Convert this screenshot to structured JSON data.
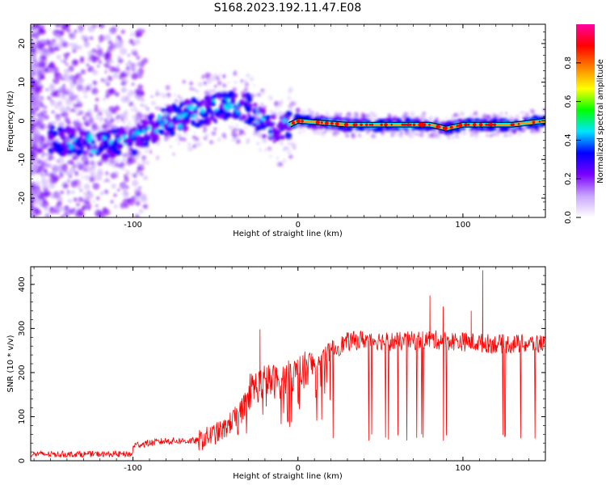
{
  "figure": {
    "title": "S168.2023.192.11.47.E08"
  },
  "chart_data": [
    {
      "type": "heatmap",
      "xlabel": "Height of straight line (km)",
      "ylabel": "Frequency (Hz)",
      "xlim": [
        -162,
        150
      ],
      "ylim": [
        -25,
        25
      ],
      "x_ticks": [
        -100,
        0,
        100
      ],
      "y_ticks": [
        -20,
        -10,
        0,
        10,
        20
      ],
      "colorbar": {
        "label": "Normalized spectral amplitude",
        "range": [
          0,
          1
        ],
        "ticks": [
          "0.0",
          "0.2",
          "0.4",
          "0.6",
          "0.8"
        ],
        "colors": [
          "#ffffff",
          "#c9a6ff",
          "#7a00ff",
          "#0000ff",
          "#00e5ff",
          "#00ff00",
          "#ffff00",
          "#ff8000",
          "#ff0000",
          "#ff00a0"
        ]
      },
      "ridge": {
        "x": [
          -150,
          -120,
          -100,
          -85,
          -70,
          -55,
          -40,
          -30,
          -20,
          -12,
          -5,
          0,
          30,
          60,
          80,
          90,
          100,
          110,
          130,
          150
        ],
        "y": [
          -5,
          -6,
          -5,
          -1,
          1,
          3,
          4,
          3,
          -1,
          -3,
          -1,
          0,
          -1,
          -1,
          -1,
          -2,
          -1,
          -1,
          -1,
          0
        ]
      }
    },
    {
      "type": "line",
      "xlabel": "Height of straight line (km)",
      "ylabel": "SNR (10 * v/v)",
      "xlim": [
        -162,
        150
      ],
      "ylim": [
        0,
        440
      ],
      "x_ticks": [
        -100,
        0,
        100
      ],
      "y_ticks": [
        0,
        100,
        200,
        300,
        400
      ],
      "series": [
        {
          "color": "#ff0000",
          "envelope": {
            "x": [
              -162,
              -140,
              -120,
              -100,
              -80,
              -60,
              -45,
              -35,
              -30,
              -20,
              -10,
              0,
              10,
              20,
              30,
              40,
              60,
              80,
              100,
              120,
              140,
              150
            ],
            "y": [
              10,
              15,
              20,
              35,
              45,
              45,
              70,
              110,
              160,
              180,
              180,
              200,
              220,
              250,
              270,
              275,
              270,
              275,
              270,
              265,
              265,
              265
            ]
          },
          "spikes": [
            {
              "x": -23,
              "y": 298
            },
            {
              "x": 80,
              "y": 375
            },
            {
              "x": 88,
              "y": 350
            },
            {
              "x": 105,
              "y": 340
            },
            {
              "x": 112,
              "y": 432
            }
          ],
          "dropouts_floor": 45
        }
      ]
    }
  ]
}
